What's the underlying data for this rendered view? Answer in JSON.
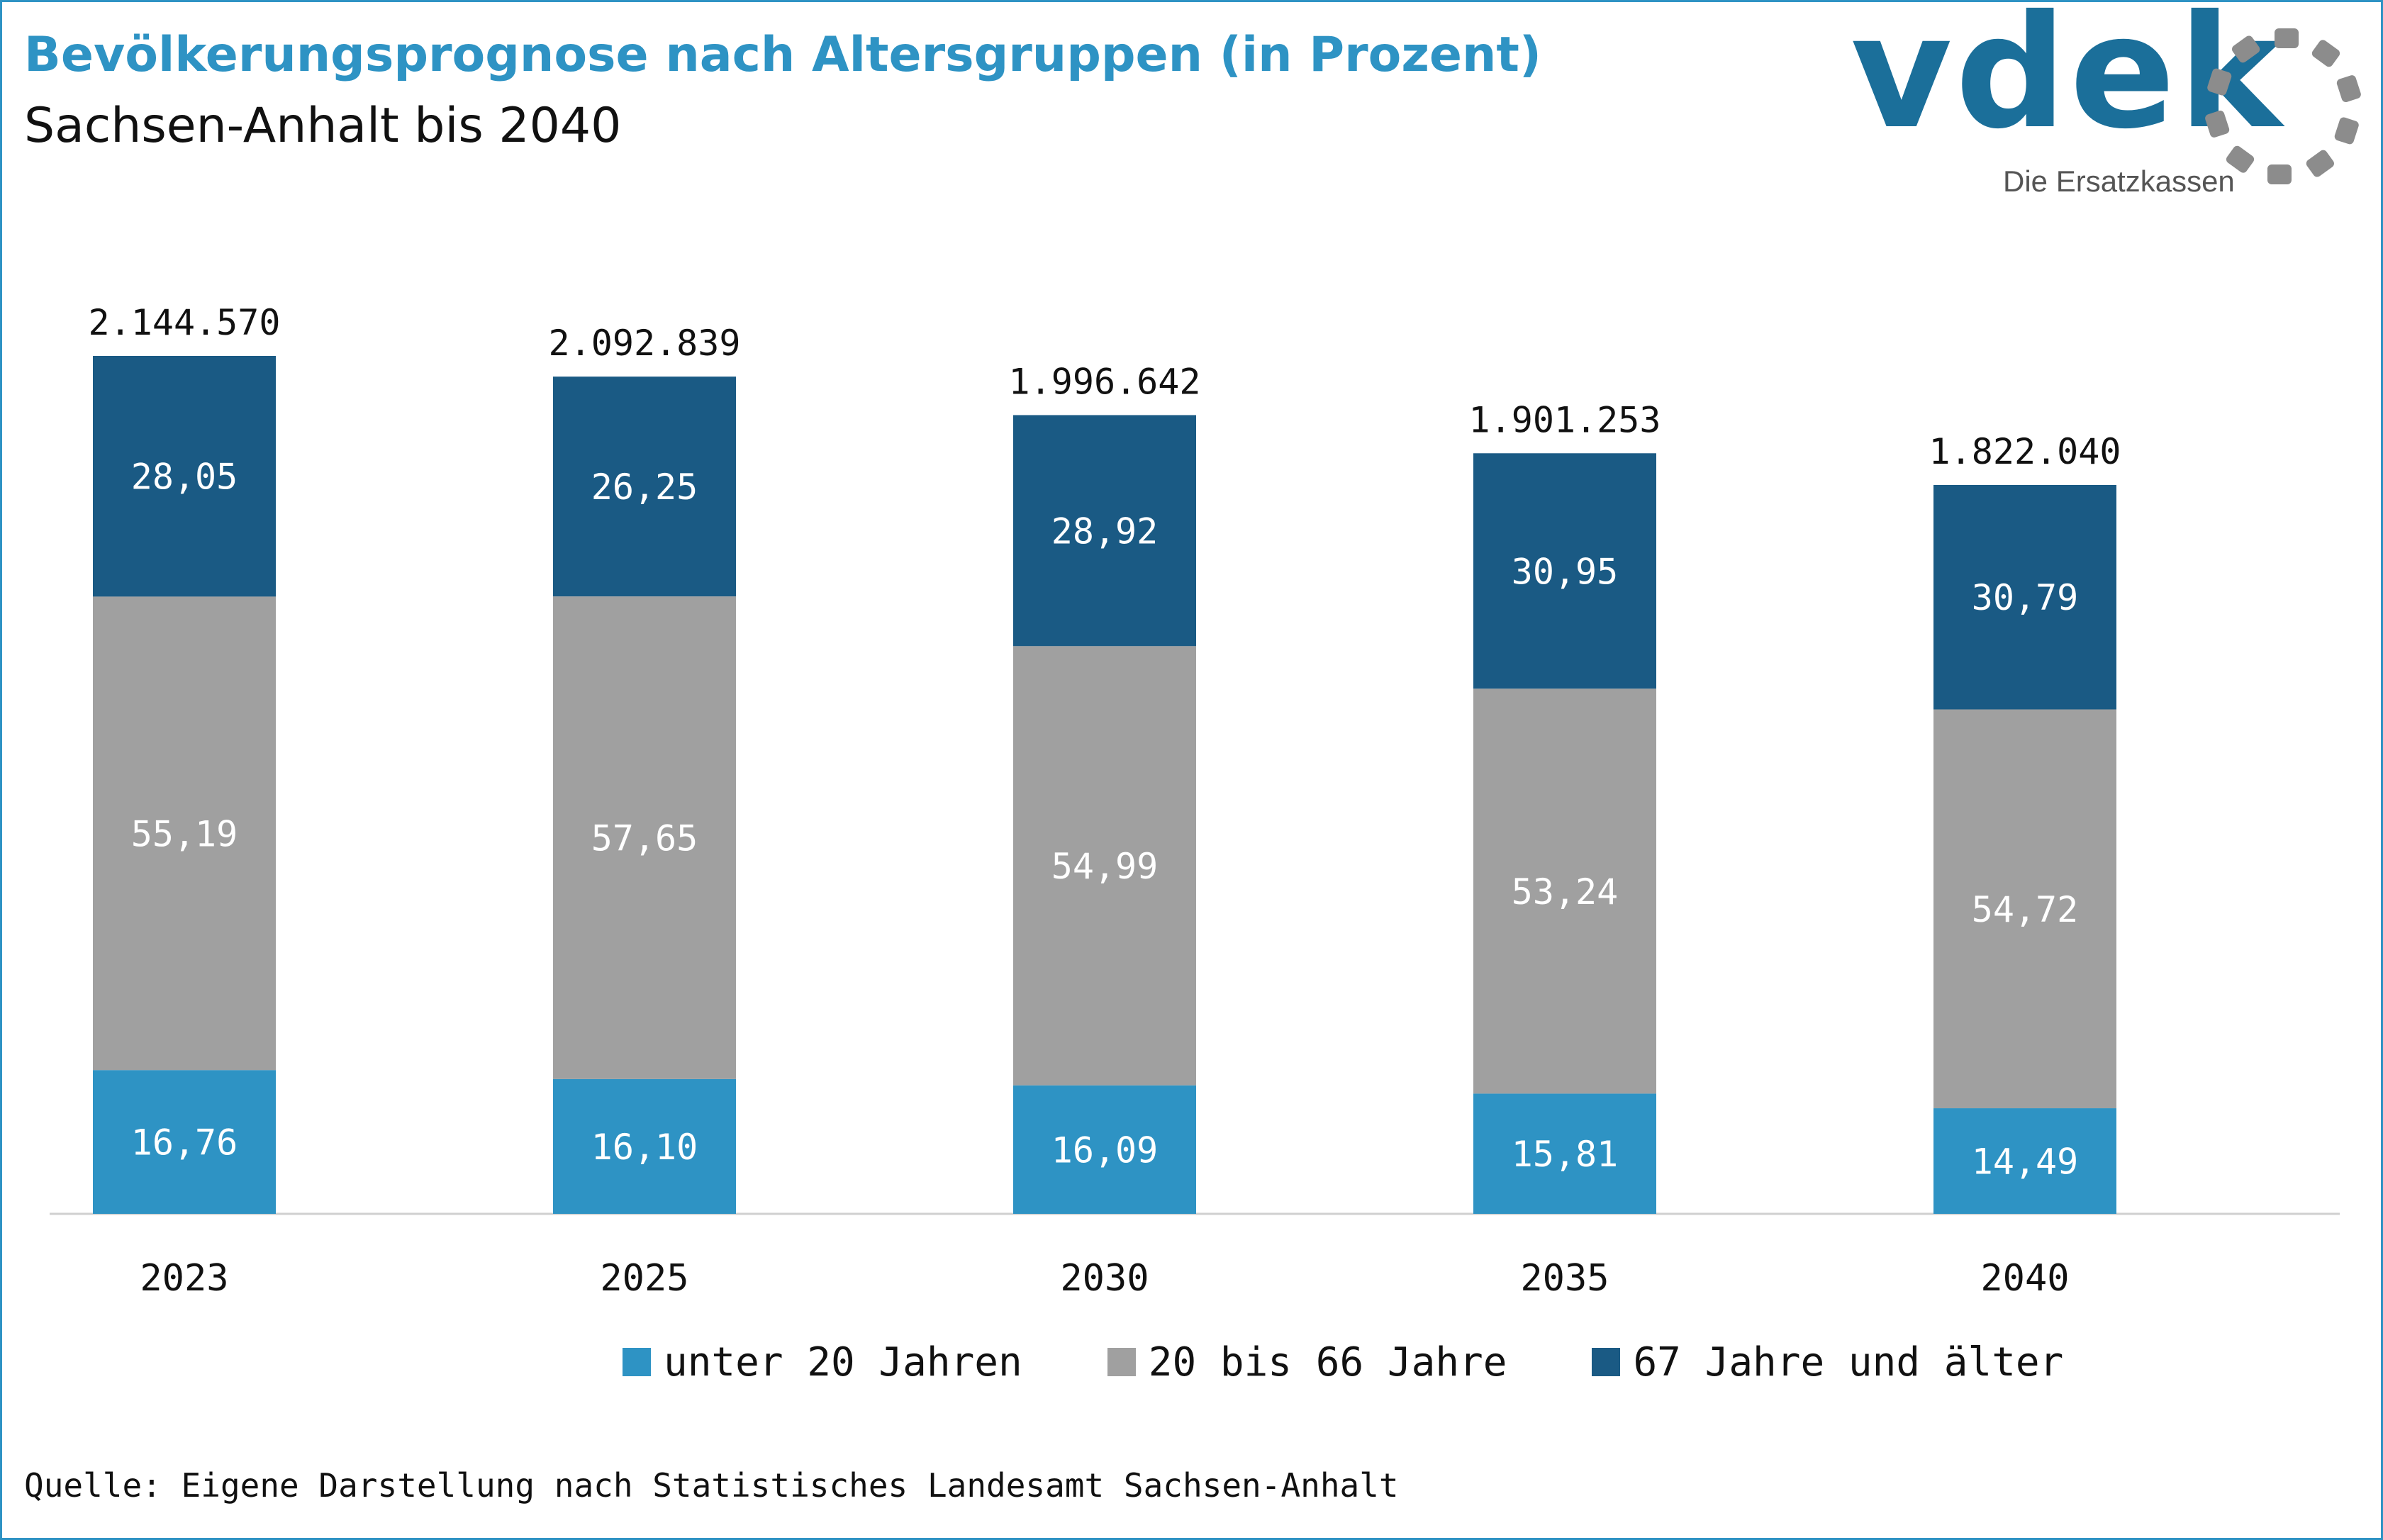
{
  "header": {
    "title": "Bevölkerungsprognose nach Altersgruppen (in Prozent)",
    "subtitle": "Sachsen-Anhalt bis 2040"
  },
  "logo": {
    "wordmark": "vdek",
    "tagline": "Die Ersatzkassen",
    "icon": "ring-of-dots-icon",
    "color": "#1b6f9a"
  },
  "colors": {
    "title": "#2e93c4",
    "unter20": "#2e93c4",
    "mitte": "#a0a0a0",
    "alt": "#1a5a84"
  },
  "chart_data": {
    "type": "bar",
    "stacked": true,
    "title": "Bevölkerungsprognose nach Altersgruppen (in Prozent)",
    "subtitle": "Sachsen-Anhalt bis 2040",
    "categories": [
      "2023",
      "2025",
      "2030",
      "2035",
      "2040"
    ],
    "totals": [
      "2.144.570",
      "2.092.839",
      "1.996.642",
      "1.901.253",
      "1.822.040"
    ],
    "totals_numeric": [
      2144570,
      2092839,
      1996642,
      1901253,
      1822040
    ],
    "series": [
      {
        "name": "unter 20 Jahren",
        "color": "#2e93c4",
        "values": [
          16.76,
          16.1,
          16.09,
          15.81,
          14.49
        ],
        "labels": [
          "16,76",
          "16,10",
          "16,09",
          "15,81",
          "14,49"
        ]
      },
      {
        "name": "20 bis 66 Jahre",
        "color": "#a0a0a0",
        "values": [
          55.19,
          57.65,
          54.99,
          53.24,
          54.72
        ],
        "labels": [
          "55,19",
          "57,65",
          "54,99",
          "53,24",
          "54,72"
        ]
      },
      {
        "name": "67 Jahre und älter",
        "color": "#1a5a84",
        "values": [
          28.05,
          26.25,
          28.92,
          30.95,
          30.79
        ],
        "labels": [
          "28,05",
          "26,25",
          "28,92",
          "30,95",
          "30,79"
        ]
      }
    ],
    "legend_position": "bottom",
    "grid": false
  },
  "footer": {
    "source": "Quelle: Eigene Darstellung nach Statistisches Landesamt Sachsen-Anhalt"
  }
}
